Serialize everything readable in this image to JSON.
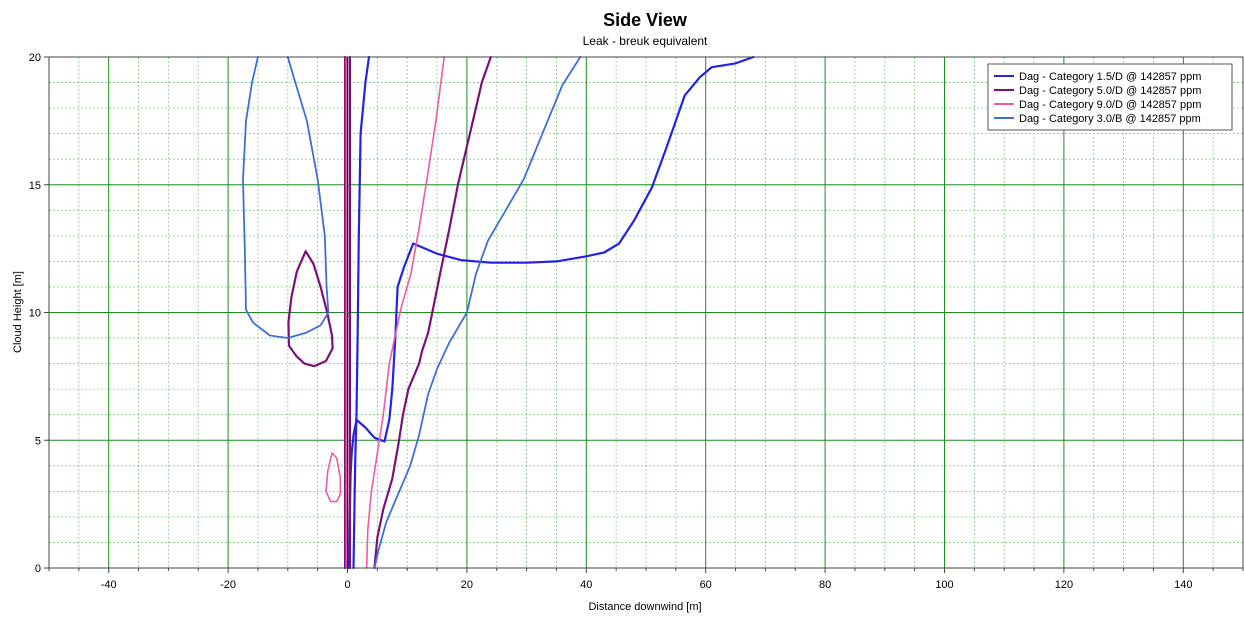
{
  "chart_data": {
    "type": "line",
    "title": "Side View",
    "subtitle": "Leak - breuk equivalent",
    "xlabel": "Distance downwind [m]",
    "ylabel": "Cloud Height [m]",
    "xlim": [
      -50,
      150
    ],
    "ylim": [
      0,
      20
    ],
    "x_major_ticks": [
      -40,
      -20,
      0,
      20,
      40,
      60,
      80,
      100,
      120,
      140
    ],
    "x_tick_labels": [
      "-40",
      "-20",
      "0",
      "20",
      "40",
      "60",
      "80",
      "100",
      "120",
      "140"
    ],
    "y_major_ticks": [
      0,
      5,
      10,
      15,
      20
    ],
    "y_tick_labels": [
      "0",
      "5",
      "10",
      "15",
      "20"
    ],
    "x_minor_step": 5,
    "y_minor_step": 1,
    "grid": true,
    "legend_position": "top-right",
    "colors": {
      "major_grid": "#1f8a1f",
      "minor_grid": "#7fd07f",
      "zero_line": "#000000"
    },
    "series": [
      {
        "name": "Dag - Category 1.5/D @ 142857 ppm",
        "color": "#2323e0",
        "width": 2.2,
        "segments": [
          [
            [
              0.2,
              0
            ],
            [
              0.3,
              1.0
            ],
            [
              0.4,
              2.2
            ],
            [
              0.5,
              3.6
            ],
            [
              0.7,
              4.5
            ],
            [
              1.0,
              5.2
            ],
            [
              1.5,
              5.8
            ],
            [
              3.0,
              5.5
            ],
            [
              4.5,
              5.1
            ],
            [
              6.2,
              4.95
            ],
            [
              7.0,
              5.8
            ],
            [
              7.5,
              7.0
            ],
            [
              8.0,
              9.0
            ],
            [
              8.4,
              11.0
            ],
            [
              9.5,
              11.8
            ],
            [
              11.0,
              12.7
            ],
            [
              15.0,
              12.3
            ],
            [
              19.0,
              12.05
            ],
            [
              24.0,
              11.95
            ],
            [
              30.0,
              11.95
            ],
            [
              35.0,
              12.0
            ],
            [
              40.0,
              12.2
            ],
            [
              43.0,
              12.35
            ],
            [
              45.5,
              12.7
            ],
            [
              48.0,
              13.6
            ],
            [
              51.0,
              14.9
            ],
            [
              53.5,
              16.5
            ],
            [
              56.5,
              18.5
            ],
            [
              59.0,
              19.2
            ],
            [
              61.0,
              19.6
            ],
            [
              65.0,
              19.75
            ],
            [
              68.0,
              20.0
            ]
          ],
          [
            [
              1.0,
              0
            ],
            [
              1.1,
              1.5
            ],
            [
              1.2,
              3.0
            ],
            [
              1.3,
              4.3
            ],
            [
              1.5,
              6.0
            ],
            [
              1.7,
              9.0
            ],
            [
              1.9,
              13.0
            ],
            [
              2.2,
              17.0
            ],
            [
              3.0,
              19.0
            ],
            [
              3.6,
              20.0
            ]
          ]
        ]
      },
      {
        "name": "Dag - Category 5.0/D @ 142857 ppm",
        "color": "#7a117a",
        "width": 2.2,
        "segments": [
          [
            [
              -0.4,
              0
            ],
            [
              -0.4,
              5.0
            ],
            [
              -0.4,
              10.0
            ],
            [
              -0.4,
              15.0
            ],
            [
              -0.4,
              20.0
            ]
          ],
          [
            [
              0.4,
              0
            ],
            [
              0.4,
              5.0
            ],
            [
              0.4,
              10.0
            ],
            [
              0.4,
              15.0
            ],
            [
              0.4,
              20.0
            ]
          ],
          [
            [
              4.5,
              0
            ],
            [
              5.0,
              1.2
            ],
            [
              6.0,
              2.3
            ],
            [
              7.5,
              3.5
            ],
            [
              8.5,
              4.8
            ],
            [
              9.3,
              6.0
            ],
            [
              10.2,
              7.0
            ],
            [
              12.0,
              8.0
            ],
            [
              12.5,
              8.5
            ],
            [
              13.5,
              9.2
            ],
            [
              14.2,
              10.0
            ],
            [
              15.5,
              11.5
            ],
            [
              17.0,
              13.2
            ],
            [
              18.5,
              15.0
            ],
            [
              20.0,
              16.5
            ],
            [
              21.5,
              18.0
            ],
            [
              22.5,
              19.0
            ],
            [
              24.0,
              20.0
            ]
          ],
          [
            [
              -9.8,
              8.7
            ],
            [
              -9.9,
              9.6
            ],
            [
              -9.4,
              10.6
            ],
            [
              -8.5,
              11.6
            ],
            [
              -7.0,
              12.4
            ],
            [
              -5.7,
              11.9
            ],
            [
              -4.5,
              11.0
            ],
            [
              -3.4,
              10.0
            ],
            [
              -2.6,
              9.1
            ],
            [
              -2.5,
              8.6
            ],
            [
              -3.6,
              8.1
            ],
            [
              -5.6,
              7.9
            ],
            [
              -7.2,
              8.0
            ],
            [
              -8.6,
              8.3
            ],
            [
              -9.8,
              8.7
            ]
          ]
        ]
      },
      {
        "name": "Dag - Category 9.0/D @ 142857 ppm",
        "color": "#ee5aa6",
        "width": 1.6,
        "segments": [
          [
            [
              -0.2,
              0
            ],
            [
              -0.2,
              5.0
            ],
            [
              -0.2,
              10.0
            ],
            [
              -0.2,
              15.0
            ],
            [
              -0.2,
              20.0
            ]
          ],
          [
            [
              3.2,
              0
            ],
            [
              3.4,
              1.5
            ],
            [
              4.0,
              3.0
            ],
            [
              5.0,
              4.5
            ],
            [
              6.0,
              6.0
            ],
            [
              7.0,
              8.0
            ],
            [
              9.0,
              10.2
            ],
            [
              10.6,
              11.5
            ],
            [
              12.0,
              13.3
            ],
            [
              13.5,
              15.5
            ],
            [
              14.8,
              17.5
            ],
            [
              16.2,
              20.0
            ]
          ],
          [
            [
              -3.6,
              3.0
            ],
            [
              -3.3,
              3.8
            ],
            [
              -2.6,
              4.5
            ],
            [
              -1.8,
              4.3
            ],
            [
              -1.2,
              3.5
            ],
            [
              -1.2,
              2.9
            ],
            [
              -1.8,
              2.6
            ],
            [
              -2.8,
              2.6
            ],
            [
              -3.6,
              3.0
            ]
          ]
        ]
      },
      {
        "name": "Dag - Category 3.0/B @ 142857 ppm",
        "color": "#3f6fd4",
        "width": 1.8,
        "segments": [
          [
            [
              4.5,
              0
            ],
            [
              5.2,
              0.7
            ],
            [
              6.5,
              1.8
            ],
            [
              8.5,
              2.9
            ],
            [
              10.5,
              4.0
            ],
            [
              12.0,
              5.2
            ],
            [
              13.5,
              6.8
            ],
            [
              15.0,
              7.8
            ],
            [
              17.0,
              8.8
            ],
            [
              20.0,
              10.0
            ],
            [
              21.5,
              11.5
            ],
            [
              23.5,
              12.8
            ],
            [
              26.0,
              13.8
            ],
            [
              29.5,
              15.2
            ],
            [
              33.0,
              17.2
            ],
            [
              36.0,
              18.9
            ],
            [
              39.0,
              20.0
            ]
          ],
          [
            [
              -15.0,
              20.0
            ],
            [
              -16.0,
              19.0
            ],
            [
              -17.0,
              17.5
            ],
            [
              -17.5,
              15.2
            ],
            [
              -17.2,
              12.5
            ],
            [
              -17.0,
              10.1
            ],
            [
              -15.8,
              9.6
            ],
            [
              -13.0,
              9.1
            ],
            [
              -10.0,
              9.0
            ],
            [
              -7.0,
              9.2
            ],
            [
              -4.5,
              9.5
            ],
            [
              -3.2,
              10.0
            ],
            [
              -3.5,
              11.0
            ],
            [
              -3.8,
              13.0
            ],
            [
              -5.0,
              15.2
            ],
            [
              -6.8,
              17.5
            ],
            [
              -9.0,
              19.2
            ],
            [
              -10.0,
              20.0
            ]
          ]
        ]
      }
    ]
  }
}
